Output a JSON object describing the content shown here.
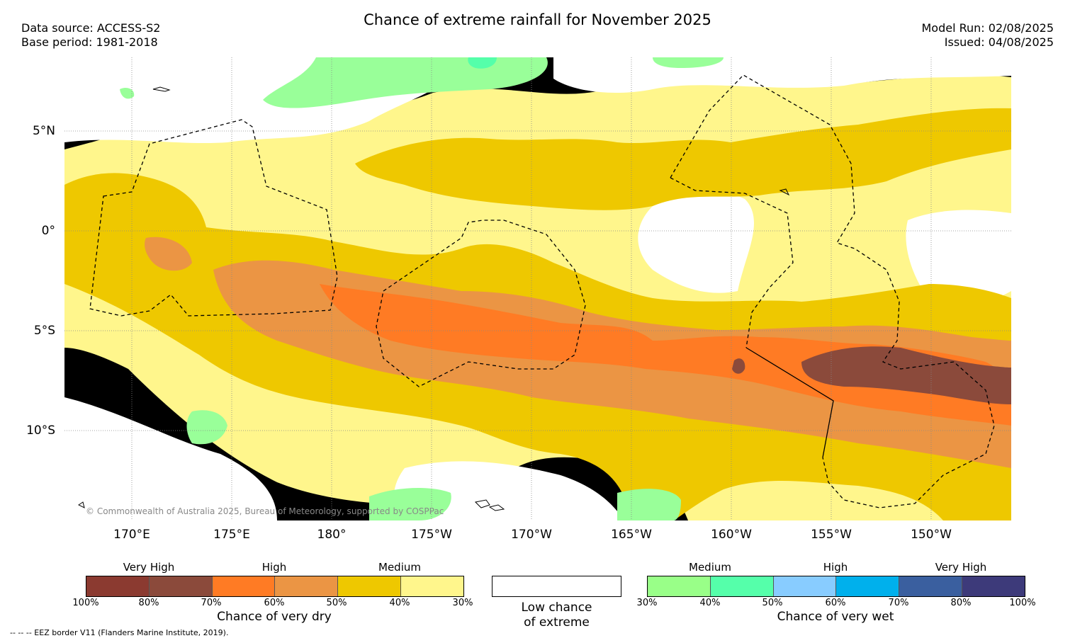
{
  "title": "Chance of extreme rainfall for November 2025",
  "header_left": {
    "data_source": "Data source: ACCESS-S2",
    "base_period": "Base period: 1981-2018"
  },
  "header_right": {
    "model_run": "Model Run: 02/08/2025",
    "issued": "Issued: 04/08/2025"
  },
  "map": {
    "lat_labels": [
      "5°N",
      "0°",
      "5°S",
      "10°S"
    ],
    "lon_labels": [
      "170°E",
      "175°E",
      "180°",
      "175°W",
      "170°W",
      "165°W",
      "160°W",
      "155°W",
      "150°W"
    ],
    "copyright": "© Commonwealth of Australia 2025, Bureau of Meteorology, supported by COSPPac",
    "colors": {
      "dry_30_40": "#fff68c",
      "dry_40_50": "#eec800",
      "dry_50_60": "#eb9544",
      "dry_60_70": "#ff7b24",
      "dry_80_100": "#8b4a3b",
      "wet_30_40": "#99ff99",
      "wet_40_50": "#55ffaa",
      "low_chance": "#ffffff",
      "eez_border": "#000000"
    }
  },
  "legend_dry": {
    "tiers": [
      "Very High",
      "High",
      "Medium"
    ],
    "ticks": [
      "100%",
      "80%",
      "70%",
      "60%",
      "50%",
      "40%",
      "30%"
    ],
    "colors": [
      "#8b3a30",
      "#8b4a3b",
      "#ff7b24",
      "#eb9544",
      "#eec800",
      "#fff68c"
    ],
    "title": "Chance of very dry"
  },
  "legend_low": {
    "line1": "Low chance",
    "line2": "of extreme"
  },
  "legend_wet": {
    "tiers": [
      "Medium",
      "High",
      "Very High"
    ],
    "ticks": [
      "30%",
      "40%",
      "50%",
      "60%",
      "70%",
      "80%",
      "100%"
    ],
    "colors": [
      "#99ff88",
      "#55ffaa",
      "#88ccff",
      "#00b0ec",
      "#3a5f9f",
      "#3d3a7a"
    ],
    "title": "Chance of very wet"
  },
  "eez_note": "-- -- -- EEZ border V11 (Flanders Marine Institute, 2019)."
}
